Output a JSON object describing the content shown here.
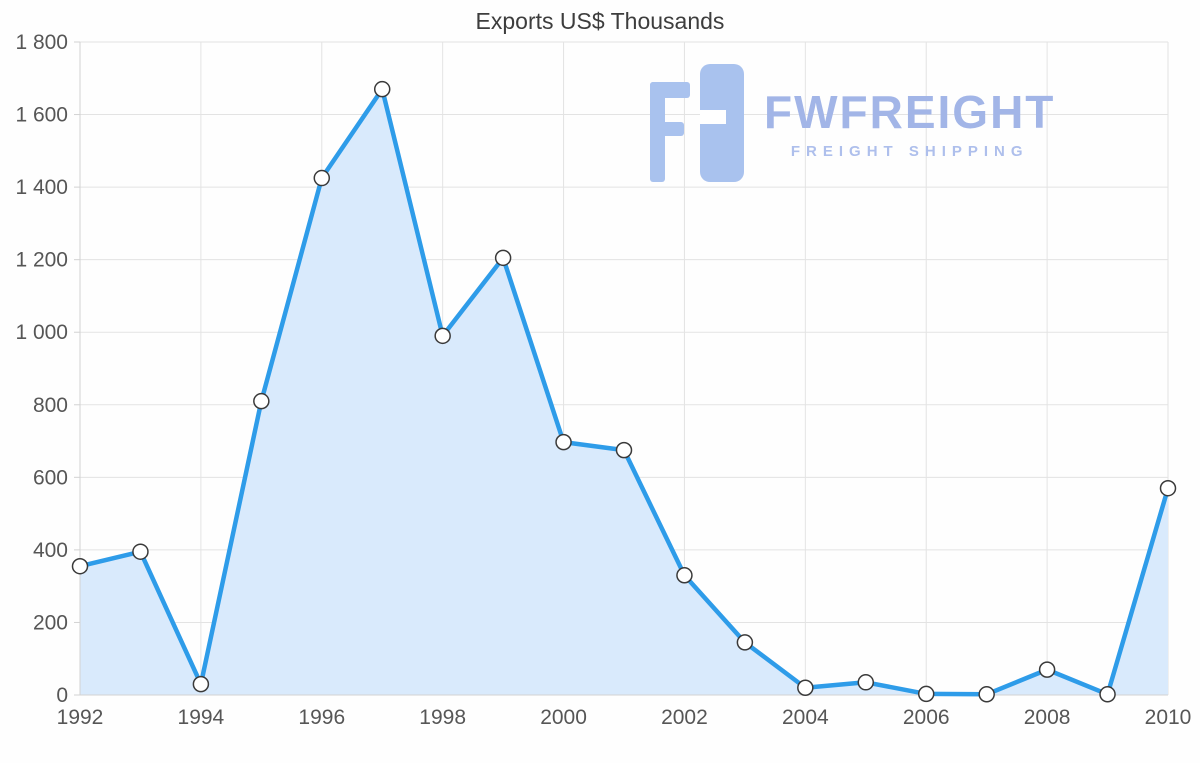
{
  "header": {
    "title": "Exports US$ Thousands"
  },
  "watermark": {
    "brand": "FWFREIGHT",
    "tagline": "FREIGHT SHIPPING",
    "logo_color": "#a9c2ee",
    "brand_color": "#a2b5e7",
    "tagline_color": "#aebfec"
  },
  "chart_data": {
    "type": "area",
    "title": "Exports US$ Thousands",
    "x": [
      1992,
      1993,
      1994,
      1995,
      1996,
      1997,
      1998,
      1999,
      2000,
      2001,
      2002,
      2003,
      2004,
      2005,
      2006,
      2007,
      2008,
      2009,
      2010
    ],
    "series": [
      {
        "name": "Exports US$ Thousands",
        "values": [
          355,
          395,
          30,
          810,
          1425,
          1670,
          990,
          1205,
          697,
          675,
          330,
          145,
          20,
          35,
          3,
          2,
          70,
          2,
          570
        ]
      }
    ],
    "xlabel": "",
    "ylabel": "",
    "ylim": [
      0,
      1800
    ],
    "ytick_step": 200,
    "ytick_labels": [
      "0",
      "200",
      "400",
      "600",
      "800",
      "1 000",
      "1 200",
      "1 400",
      "1 600",
      "1 800"
    ],
    "xtick_labels": [
      "1992",
      "1994",
      "1996",
      "1998",
      "2000",
      "2002",
      "2004",
      "2006",
      "2008",
      "2010"
    ],
    "grid": true,
    "legend": "none",
    "colors": {
      "line": "#2e9ce9",
      "fill": "#d9eafc",
      "marker_fill": "#ffffff",
      "marker_stroke": "#3a3a3a",
      "grid": "#e3e3e3",
      "axis": "#d2d2d2",
      "text": "#565656",
      "title": "#3d3d3d"
    }
  }
}
